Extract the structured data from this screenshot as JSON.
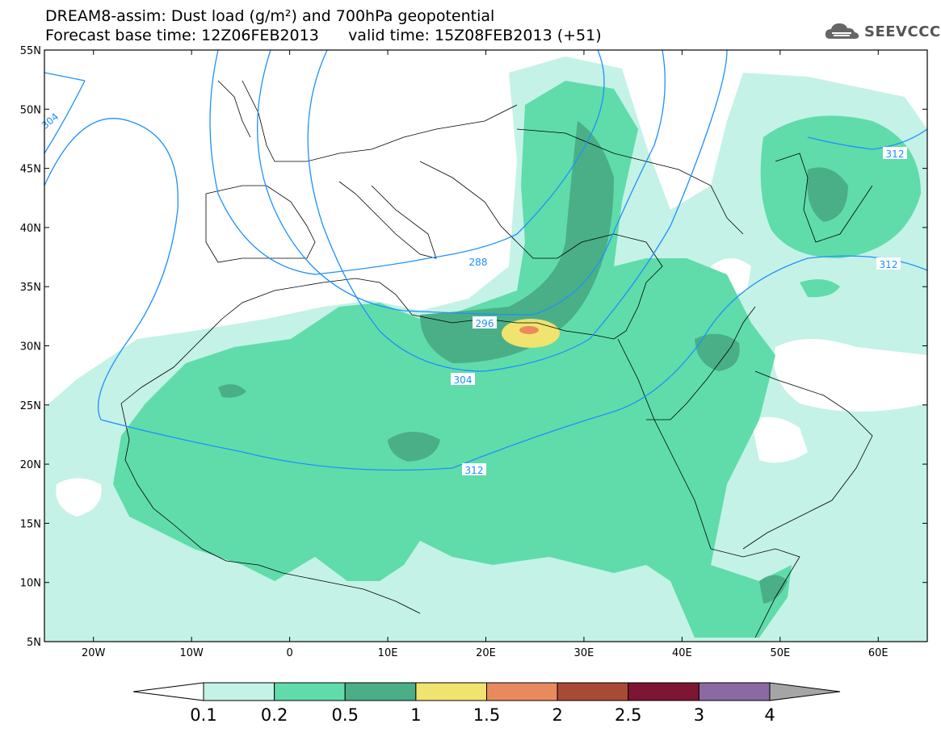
{
  "title": {
    "line1": "DREAM8-assim: Dust load (g/m²) and 700hPa geopotential",
    "line2": "Forecast base time: 12Z06FEB2013      valid time: 15Z08FEB2013 (+51)"
  },
  "logo": {
    "text": "SEEVCCC",
    "icon": "cloud-icon"
  },
  "map_data": {
    "lon_range": [
      -25,
      65
    ],
    "lat_range": [
      5,
      55
    ],
    "lat_ticks": [
      "55N",
      "50N",
      "45N",
      "40N",
      "35N",
      "30N",
      "25N",
      "20N",
      "15N",
      "10N",
      "5N"
    ],
    "lon_ticks": [
      "20W",
      "10W",
      "0",
      "10E",
      "20E",
      "30E",
      "40E",
      "50E",
      "60E"
    ],
    "contour_labels": [
      "304",
      "288",
      "296",
      "304",
      "312",
      "312",
      "312"
    ],
    "colors": {
      "frame": "#000000",
      "contour": "#1e90ff",
      "coast": "#000000"
    }
  },
  "colorbar": {
    "labels": [
      "0.1",
      "0.2",
      "0.5",
      "1",
      "1.5",
      "2",
      "2.5",
      "3",
      "4"
    ],
    "colors": [
      "#c4f2e6",
      "#5fdcaa",
      "#4aaf87",
      "#f0e36e",
      "#e98a5e",
      "#a94a37",
      "#7e1533",
      "#8a6aa0"
    ],
    "low_color": "#ffffff",
    "high_color": "#a5a5a5"
  }
}
